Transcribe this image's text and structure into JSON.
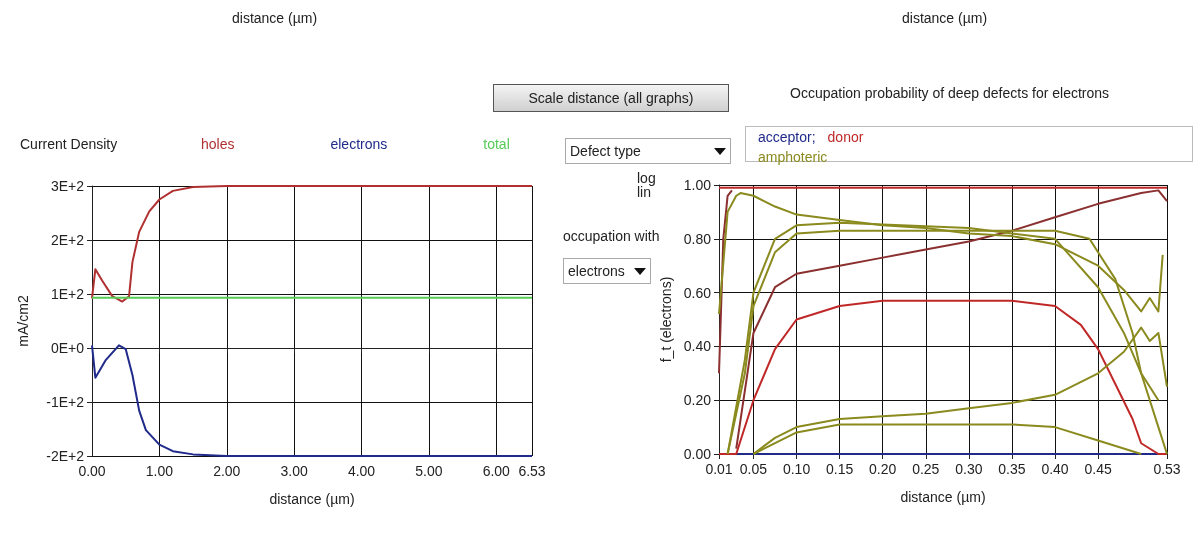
{
  "chart_data": [
    {
      "type": "line",
      "title": "Current Density",
      "xlabel": "distance (µm)",
      "ylabel": "mA/cm2",
      "annotations": [
        "distance (µm)"
      ],
      "xlim": [
        0,
        6.53
      ],
      "xticks": [
        {
          "value": 0,
          "label": "0.00"
        },
        {
          "value": 1,
          "label": "1.00"
        },
        {
          "value": 2,
          "label": "2.00"
        },
        {
          "value": 3,
          "label": "3.00"
        },
        {
          "value": 4,
          "label": "4.00"
        },
        {
          "value": 5,
          "label": "5.00"
        },
        {
          "value": 6,
          "label": "6.00"
        },
        6.53
      ],
      "ylim": [
        -200,
        300
      ],
      "yticks": [
        {
          "value": -200,
          "label": "-2E+2"
        },
        {
          "value": -100,
          "label": "-1E+2"
        },
        {
          "value": 0,
          "label": "0E+0"
        },
        {
          "value": 100,
          "label": "1E+2"
        },
        {
          "value": 200,
          "label": "2E+2"
        },
        {
          "value": 300,
          "label": "3E+2"
        }
      ],
      "grid": true,
      "legend": "top",
      "marker": "none",
      "line_style": "solid",
      "series": [
        {
          "name": "holes",
          "color": "#b03030",
          "x": [
            0,
            0.05,
            0.15,
            0.3,
            0.45,
            0.55,
            0.6,
            0.7,
            0.85,
            1,
            1.2,
            1.5,
            2,
            6.53
          ],
          "values": [
            92,
            146,
            125,
            96,
            86,
            96,
            159,
            215,
            253,
            275,
            291,
            298,
            300,
            300
          ]
        },
        {
          "name": "electrons",
          "color": "#1f2a8a",
          "x": [
            0,
            0.05,
            0.2,
            0.4,
            0.5,
            0.6,
            0.7,
            0.8,
            1,
            1.2,
            1.5,
            2,
            6.53
          ],
          "values": [
            5,
            -55,
            -23,
            5,
            -2,
            -50,
            -116,
            -152,
            -179,
            -191,
            -197,
            -200,
            -200
          ]
        },
        {
          "name": "total",
          "color": "#55cc55",
          "x": [
            0,
            6.53
          ],
          "values": [
            93,
            93
          ]
        }
      ]
    },
    {
      "type": "line",
      "title": "Occupation probability of deep defects for electrons",
      "xlabel": "distance (µm)",
      "ylabel": "f_t (electrons)",
      "annotations": [
        "distance (µm)",
        "Scale distance (all graphs)",
        "Defect type",
        "log",
        "lin",
        "occupation with",
        "electrons"
      ],
      "xlim": [
        0.01,
        0.53
      ],
      "xticks": [
        0.01,
        0.05,
        {
          "value": 0.1,
          "label": "0.10"
        },
        0.15,
        {
          "value": 0.2,
          "label": "0.20"
        },
        0.25,
        {
          "value": 0.3,
          "label": "0.30"
        },
        0.35,
        {
          "value": 0.4,
          "label": "0.40"
        },
        0.45,
        0.53
      ],
      "ylim": [
        0,
        1
      ],
      "yticks": [
        {
          "value": 0,
          "label": "0.00"
        },
        {
          "value": 0.2,
          "label": "0.20"
        },
        {
          "value": 0.4,
          "label": "0.40"
        },
        {
          "value": 0.6,
          "label": "0.60"
        },
        {
          "value": 0.8,
          "label": "0.80"
        },
        {
          "value": 1,
          "label": "1.00"
        }
      ],
      "grid": true,
      "legend": "top",
      "marker": "none",
      "line_style": "solid",
      "series": [
        {
          "name": "acceptor;",
          "color": "#1f2a8a",
          "x": [
            0.01,
            0.53
          ],
          "values": [
            0,
            0
          ]
        },
        {
          "name": "donor",
          "color": "#c02828",
          "x": [
            0.01,
            0.53
          ],
          "values": [
            0.99,
            0.99
          ]
        },
        {
          "color": "#c02828",
          "x": [
            0.01,
            0.03,
            0.05,
            0.075,
            0.1,
            0.15,
            0.2,
            0.35,
            0.4,
            0.43,
            0.45,
            0.47,
            0.49,
            0.5,
            0.52,
            0.53
          ],
          "values": [
            0,
            0,
            0.2,
            0.39,
            0.5,
            0.55,
            0.57,
            0.57,
            0.55,
            0.48,
            0.39,
            0.26,
            0.13,
            0.04,
            0,
            0
          ]
        },
        {
          "color": "#8b3030",
          "x": [
            0.01,
            0.015,
            0.02,
            0.025
          ],
          "values": [
            0.3,
            0.8,
            0.96,
            0.98
          ]
        },
        {
          "color": "#8b3030",
          "x": [
            0.03,
            0.05,
            0.075,
            0.1,
            0.15,
            0.2,
            0.25,
            0.3,
            0.35,
            0.4,
            0.45,
            0.5,
            0.52,
            0.53
          ],
          "values": [
            0.02,
            0.45,
            0.62,
            0.67,
            0.7,
            0.73,
            0.76,
            0.79,
            0.83,
            0.88,
            0.93,
            0.97,
            0.98,
            0.94
          ]
        },
        {
          "name": "amphoteric",
          "color": "#8a8a1e",
          "x": [
            0.01,
            0.02,
            0.03,
            0.035,
            0.05,
            0.075,
            0.1,
            0.15,
            0.2,
            0.25,
            0.3,
            0.35,
            0.4,
            0.45,
            0.48,
            0.5,
            0.51,
            0.52,
            0.525
          ],
          "values": [
            0.52,
            0.9,
            0.96,
            0.97,
            0.96,
            0.92,
            0.89,
            0.87,
            0.85,
            0.84,
            0.82,
            0.81,
            0.78,
            0.7,
            0.61,
            0.53,
            0.58,
            0.53,
            0.74
          ]
        },
        {
          "color": "#8a8a1e",
          "x": [
            0.05,
            0.075,
            0.1,
            0.15,
            0.2,
            0.25,
            0.3,
            0.35,
            0.4,
            0.45,
            0.48,
            0.5,
            0.51,
            0.52,
            0.53
          ],
          "values": [
            0,
            0.06,
            0.1,
            0.13,
            0.14,
            0.15,
            0.17,
            0.19,
            0.22,
            0.3,
            0.38,
            0.47,
            0.42,
            0.45,
            0.25
          ]
        },
        {
          "color": "#8a8a1e",
          "x": [
            0.02,
            0.04,
            0.05,
            0.075,
            0.1,
            0.15,
            0.4,
            0.44,
            0.47,
            0.49,
            0.5,
            0.52,
            0.53
          ],
          "values": [
            0,
            0.3,
            0.55,
            0.75,
            0.82,
            0.83,
            0.83,
            0.8,
            0.65,
            0.45,
            0.3,
            0.1,
            0
          ]
        },
        {
          "color": "#8a8a1e",
          "x": [
            0.02,
            0.04,
            0.05,
            0.075,
            0.1,
            0.15,
            0.3,
            0.4,
            0.45,
            0.48,
            0.5,
            0.52
          ],
          "values": [
            0,
            0.35,
            0.6,
            0.8,
            0.85,
            0.86,
            0.84,
            0.8,
            0.62,
            0.45,
            0.3,
            0.2
          ]
        },
        {
          "color": "#8a8a1e",
          "x": [
            0.05,
            0.1,
            0.15,
            0.35,
            0.4,
            0.45,
            0.5
          ],
          "values": [
            0,
            0.08,
            0.11,
            0.11,
            0.1,
            0.05,
            0
          ]
        }
      ]
    }
  ]
}
